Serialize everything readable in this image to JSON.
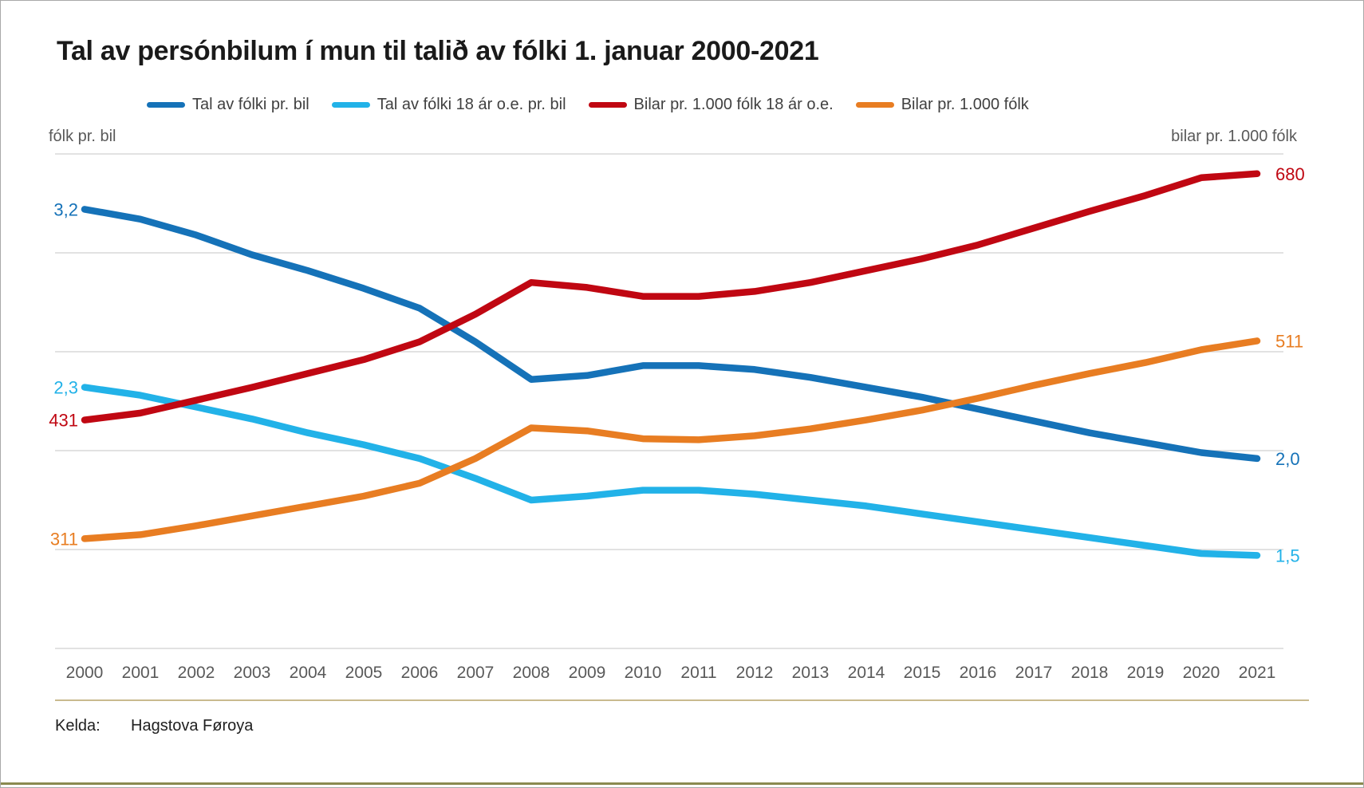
{
  "title": "Tal av persónbilum í mun til talið av fólki 1. januar 2000-2021",
  "legend": {
    "items": [
      {
        "label": "Tal av fólki pr. bil",
        "color": "#1572b8"
      },
      {
        "label": "Tal av fólki 18 ár o.e. pr. bil",
        "color": "#22b2e8"
      },
      {
        "label": "Bilar pr. 1.000 fólk 18 ár o.e.",
        "color": "#c00712"
      },
      {
        "label": "Bilar pr. 1.000 fólk",
        "color": "#e87d22"
      }
    ]
  },
  "axes": {
    "left_caption": "fólk pr. bil",
    "right_caption": "bilar pr. 1.000 fólk"
  },
  "source": {
    "label": "Kelda:",
    "value": "Hagstova Føroya"
  },
  "colors": {
    "gridline": "#d9d9d9",
    "axis_text": "#595959",
    "legend_text": "#404040",
    "separator": "#c9ba8e",
    "bottom_rule": "#8a8a4f",
    "border": "#a9a9a9",
    "title": "#1a1a1a"
  },
  "chart_data": {
    "type": "line",
    "title": "Tal av persónbilum í mun til talið av fólki 1. januar 2000-2021",
    "x": [
      2000,
      2001,
      2002,
      2003,
      2004,
      2005,
      2006,
      2007,
      2008,
      2009,
      2010,
      2011,
      2012,
      2013,
      2014,
      2015,
      2016,
      2017,
      2018,
      2019,
      2020,
      2021
    ],
    "series": [
      {
        "name": "Tal av fólki pr. bil",
        "axis": "left",
        "color": "#1572b8",
        "start_label": "3,2",
        "end_label": "2,0",
        "values": [
          3.22,
          3.17,
          3.09,
          2.99,
          2.91,
          2.82,
          2.72,
          2.55,
          2.36,
          2.38,
          2.43,
          2.43,
          2.41,
          2.37,
          2.32,
          2.27,
          2.21,
          2.15,
          2.09,
          2.04,
          1.99,
          1.96
        ]
      },
      {
        "name": "Tal av fólki 18 ár o.e. pr. bil",
        "axis": "left",
        "color": "#22b2e8",
        "start_label": "2,3",
        "end_label": "1,5",
        "values": [
          2.32,
          2.28,
          2.22,
          2.16,
          2.09,
          2.03,
          1.96,
          1.86,
          1.75,
          1.77,
          1.8,
          1.8,
          1.78,
          1.75,
          1.72,
          1.68,
          1.64,
          1.6,
          1.56,
          1.52,
          1.48,
          1.47
        ]
      },
      {
        "name": "Bilar pr. 1.000 fólk 18 ár o.e.",
        "axis": "right",
        "color": "#c00712",
        "start_label": "431",
        "end_label": "680",
        "values": [
          431,
          438,
          451,
          464,
          478,
          492,
          510,
          538,
          570,
          565,
          556,
          556,
          561,
          570,
          582,
          594,
          608,
          625,
          642,
          658,
          676,
          680
        ]
      },
      {
        "name": "Bilar pr. 1.000 fólk",
        "axis": "right",
        "color": "#e87d22",
        "start_label": "311",
        "end_label": "511",
        "values": [
          311,
          315,
          324,
          334,
          344,
          354,
          367,
          392,
          423,
          420,
          412,
          411,
          415,
          422,
          431,
          441,
          453,
          466,
          478,
          489,
          502,
          511
        ]
      }
    ],
    "left_axis": {
      "min": 1.0,
      "max": 3.5,
      "gridline_step": 0.5,
      "tick_labels_visible": false
    },
    "right_axis": {
      "min": 200,
      "max": 700,
      "gridline_step": 100,
      "tick_labels_visible": false
    },
    "grid": true,
    "legend_position": "top",
    "xlabel": "",
    "ylabel_left": "fólk pr. bil",
    "ylabel_right": "bilar pr. 1.000 fólk"
  }
}
